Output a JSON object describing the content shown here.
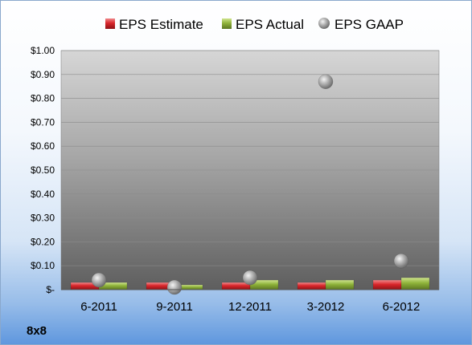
{
  "company_label": "8x8",
  "chart_data": {
    "type": "bar",
    "categories": [
      "6-2011",
      "9-2011",
      "12-2011",
      "3-2012",
      "6-2012"
    ],
    "series": [
      {
        "name": "EPS Estimate",
        "type": "bar",
        "color": "#d9262b",
        "values": [
          0.03,
          0.03,
          0.03,
          0.03,
          0.04
        ]
      },
      {
        "name": "EPS Actual",
        "type": "bar",
        "color": "#8fb33a",
        "values": [
          0.03,
          0.02,
          0.04,
          0.04,
          0.05
        ]
      },
      {
        "name": "EPS GAAP",
        "type": "scatter",
        "color": "#a6a6a6",
        "values": [
          0.04,
          0.01,
          0.05,
          0.87,
          0.12
        ]
      }
    ],
    "y_ticks": [
      "$-",
      "$0.10",
      "$0.20",
      "$0.30",
      "$0.40",
      "$0.50",
      "$0.60",
      "$0.70",
      "$0.80",
      "$0.90",
      "$1.00"
    ],
    "ylim": [
      0,
      1.0
    ],
    "grid": true,
    "legend_position": "top"
  }
}
